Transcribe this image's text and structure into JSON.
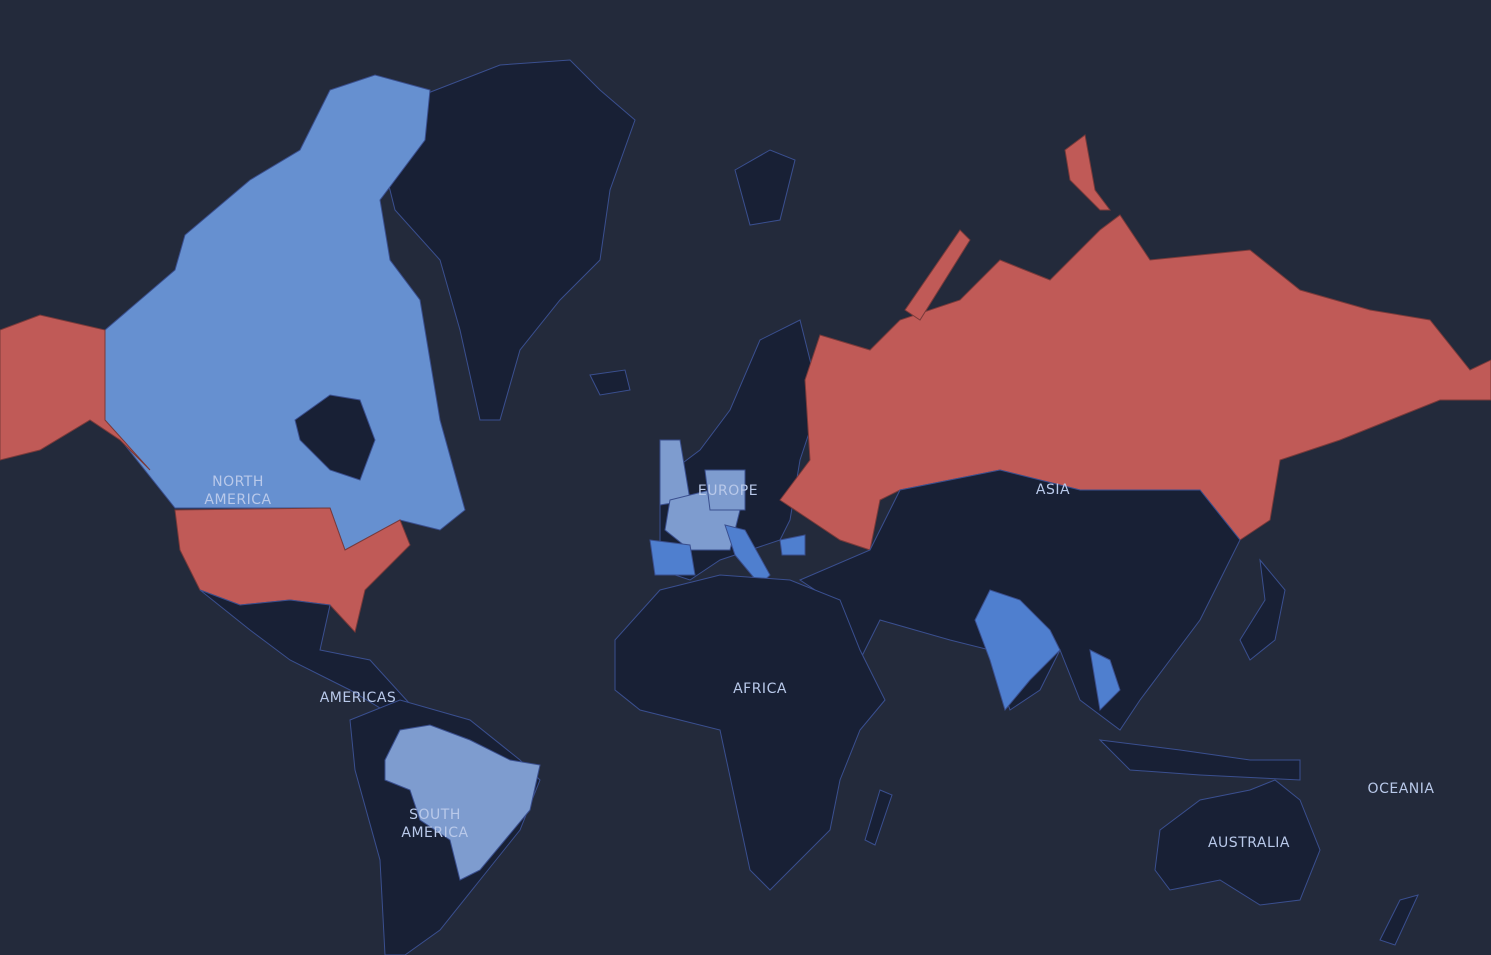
{
  "labels": {
    "north_america": "NORTH AMERICA",
    "americas": "AMERICAS",
    "south_america": "SOUTH AMERICA",
    "europe": "EUROPE",
    "africa": "AFRICA",
    "asia": "ASIA",
    "australia": "AUSTRALIA",
    "oceania": "OCEANIA"
  }
}
